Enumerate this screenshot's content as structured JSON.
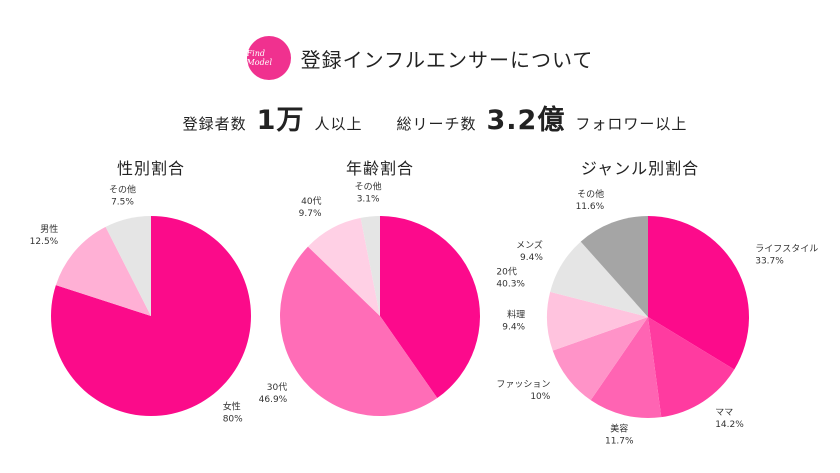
{
  "header": {
    "logo": "Find Model",
    "title": "登録インフルエンサーについて",
    "stats": [
      "登録者数",
      "1万",
      "人以上",
      "総リーチ数",
      "3.2億",
      "フォロワー以上"
    ]
  },
  "chart_data": [
    {
      "type": "pie",
      "title": "性別割合",
      "categories": [
        "女性",
        "男性",
        "その他"
      ],
      "values": [
        80,
        12.5,
        7.5
      ],
      "value_labels": [
        "80%",
        "12.5%",
        "7.5%"
      ],
      "colors": [
        "#fb0b8a",
        "#ffb0d5",
        "#e5e5e5"
      ]
    },
    {
      "type": "pie",
      "title": "年齢割合",
      "categories": [
        "20代",
        "30代",
        "40代",
        "その他"
      ],
      "values": [
        40.3,
        46.9,
        9.7,
        3.1
      ],
      "value_labels": [
        "40.3%",
        "46.9%",
        "9.7%",
        "3.1%"
      ],
      "colors": [
        "#fc0a8c",
        "#ff6db7",
        "#ffd0e5",
        "#e5e5e5"
      ]
    },
    {
      "type": "pie",
      "title": "ジャンル別割合",
      "categories": [
        "ライフスタイル",
        "ママ",
        "美容",
        "ファッション",
        "料理",
        "メンズ",
        "その他"
      ],
      "values": [
        33.7,
        14.2,
        11.7,
        10,
        9.4,
        9.4,
        11.6
      ],
      "value_labels": [
        "33.7%",
        "14.2%",
        "11.7%",
        "10%",
        "9.4%",
        "9.4%",
        "11.6%"
      ],
      "colors": [
        "#fc0b8b",
        "#ff3ba0",
        "#ff64b3",
        "#ff93c8",
        "#ffc3de",
        "#e5e5e5",
        "#a5a5a5"
      ]
    }
  ]
}
